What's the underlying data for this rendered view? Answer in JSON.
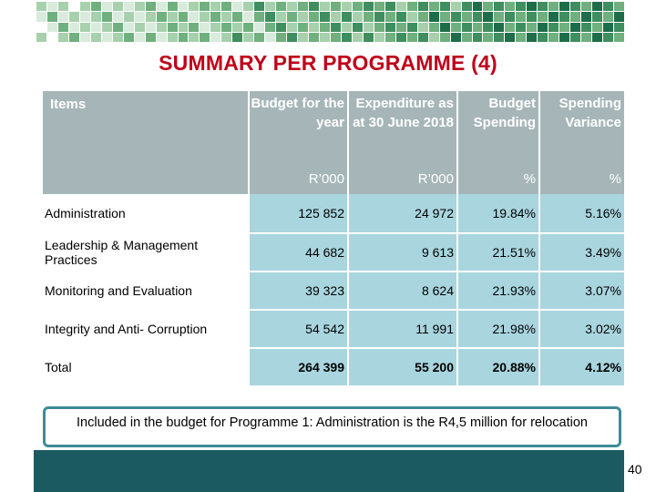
{
  "title": "SUMMARY PER PROGRAMME (4)",
  "colors": {
    "title": "#c0001a",
    "header_bg": "#a6b6b8",
    "cell_bg": "#a9d5df",
    "footer": "#1c5a62",
    "note_border": "#3e8a97"
  },
  "table": {
    "headers": [
      "Items",
      "Budget for the year",
      "Expenditure as at 30 June 2018",
      "Budget Spending",
      "Spending Variance"
    ],
    "units": [
      "",
      "R’000",
      "R’000",
      "%",
      "%"
    ],
    "rows": [
      [
        "Administration",
        "125 852",
        "24 972",
        "19.84%",
        "5.16%"
      ],
      [
        "Leadership & Management Practices",
        "44 682",
        "9 613",
        "21.51%",
        "3.49%"
      ],
      [
        "Monitoring and Evaluation",
        "39 323",
        "8 624",
        "21.93%",
        "3.07%"
      ],
      [
        "Integrity and Anti- Corruption",
        "54 542",
        "11 991",
        "21.98%",
        "3.02%"
      ],
      [
        "Total",
        "264 399",
        "55 200",
        "20.88%",
        "4.12%"
      ]
    ]
  },
  "note": "Included in the budget for Programme 1: Administration is the R4,5 million for relocation",
  "page_number": "40"
}
